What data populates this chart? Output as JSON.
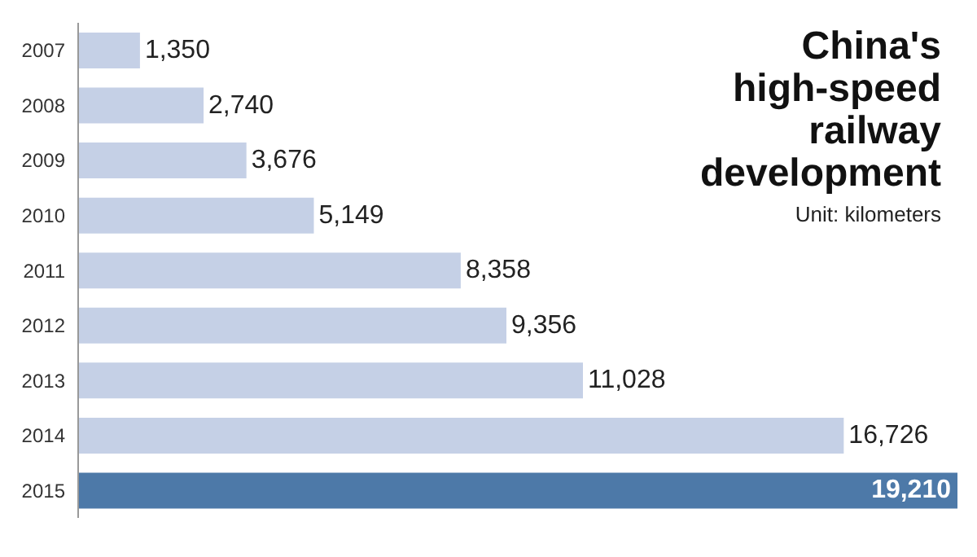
{
  "chart_data": {
    "type": "bar",
    "orientation": "horizontal",
    "title": "China's high-speed railway development",
    "subtitle": "Unit: kilometers",
    "categories": [
      "2007",
      "2008",
      "2009",
      "2010",
      "2011",
      "2012",
      "2013",
      "2014",
      "2015"
    ],
    "values": [
      1350,
      2740,
      3676,
      5149,
      8358,
      9356,
      11028,
      16726,
      19210
    ],
    "colors": [
      "#c5d0e6",
      "#c5d0e6",
      "#c5d0e6",
      "#c5d0e6",
      "#c5d0e6",
      "#c5d0e6",
      "#c5d0e6",
      "#c5d0e6",
      "#4d79a8"
    ],
    "value_labels": [
      "1,350",
      "2,740",
      "3,676",
      "5,149",
      "8,358",
      "9,356",
      "11,028",
      "16,726",
      "19,210"
    ]
  }
}
